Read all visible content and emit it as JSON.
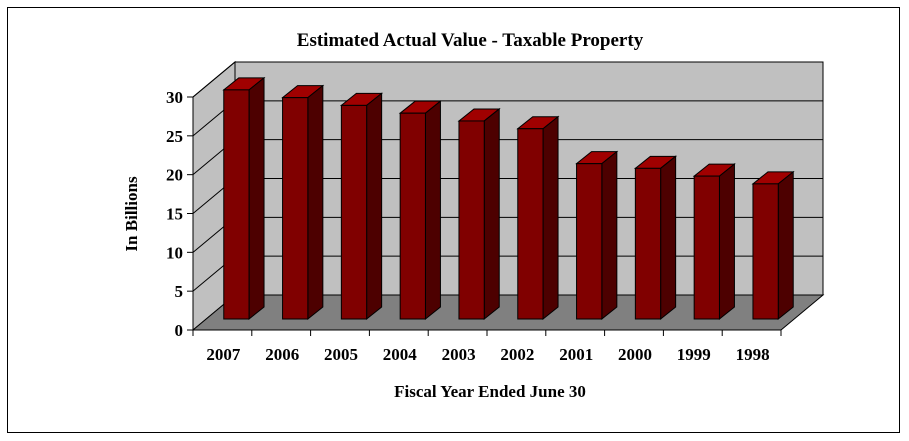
{
  "chart_data": {
    "type": "bar",
    "title": "Estimated Actual Value - Taxable Property",
    "xlabel": "Fiscal Year Ended June 30",
    "ylabel": "In Billions",
    "categories": [
      "2007",
      "2006",
      "2005",
      "2004",
      "2003",
      "2002",
      "2001",
      "2000",
      "1999",
      "1998"
    ],
    "values": [
      29.5,
      28.5,
      27.5,
      26.5,
      25.5,
      24.5,
      20.0,
      19.4,
      18.4,
      17.4
    ],
    "ylim": [
      0,
      30
    ],
    "yticks": [
      "0",
      "5",
      "10",
      "15",
      "20",
      "25",
      "30"
    ],
    "grid": true,
    "legend": "none",
    "colors": {
      "bar_front": "#800000",
      "bar_side": "#4d0000",
      "bar_top": "#a00000",
      "wall": "#c0c0c0",
      "floor": "#808080",
      "grid": "#000000"
    }
  }
}
